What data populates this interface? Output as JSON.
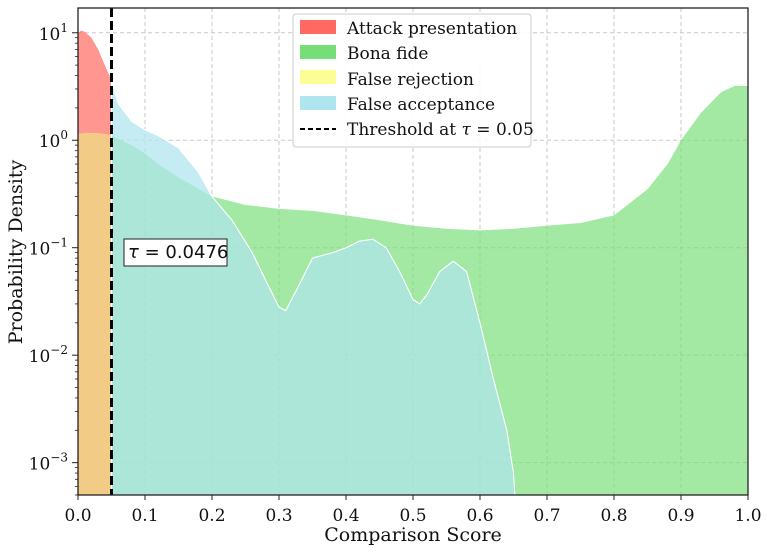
{
  "chart_data": {
    "type": "area",
    "title": "",
    "xlabel": "Comparison Score",
    "ylabel": "Probability Density",
    "yscale": "log",
    "xlim": [
      0.0,
      1.0
    ],
    "ylim": [
      0.0005,
      17
    ],
    "xticks": [
      "0.0",
      "0.1",
      "0.2",
      "0.3",
      "0.4",
      "0.5",
      "0.6",
      "0.7",
      "0.8",
      "0.9",
      "1.0"
    ],
    "yticks": [
      {
        "value": 0.001,
        "base": "10",
        "exp": "−3"
      },
      {
        "value": 0.01,
        "base": "10",
        "exp": "−2"
      },
      {
        "value": 0.1,
        "base": "10",
        "exp": "−1"
      },
      {
        "value": 1,
        "base": "10",
        "exp": "0"
      },
      {
        "value": 10,
        "base": "10",
        "exp": "1"
      }
    ],
    "grid": true,
    "legend_position": "top-center",
    "series": [
      {
        "name": "Attack presentation",
        "color": "#ff6961",
        "x": [
          0.0,
          0.005,
          0.01,
          0.02,
          0.03,
          0.04,
          0.05
        ],
        "y": [
          10.0,
          10.5,
          10.2,
          9.0,
          7.0,
          5.0,
          3.6
        ]
      },
      {
        "name": "Bona fide",
        "color": "#77dd77",
        "x": [
          0.0,
          0.01,
          0.05,
          0.08,
          0.1,
          0.12,
          0.15,
          0.2,
          0.25,
          0.3,
          0.35,
          0.4,
          0.45,
          0.5,
          0.55,
          0.6,
          0.65,
          0.7,
          0.75,
          0.8,
          0.85,
          0.88,
          0.9,
          0.93,
          0.96,
          0.98,
          1.0
        ],
        "y": [
          1.15,
          1.17,
          1.1,
          0.9,
          0.75,
          0.6,
          0.45,
          0.3,
          0.25,
          0.23,
          0.22,
          0.2,
          0.18,
          0.16,
          0.15,
          0.145,
          0.15,
          0.16,
          0.17,
          0.2,
          0.35,
          0.6,
          1.0,
          1.8,
          2.8,
          3.2,
          3.2
        ]
      },
      {
        "name": "False rejection",
        "color": "#fdfd96",
        "x": [
          0.0,
          0.01,
          0.02,
          0.03,
          0.04,
          0.05
        ],
        "y": [
          1.15,
          1.17,
          1.17,
          1.16,
          1.14,
          1.12
        ]
      },
      {
        "name": "False acceptance",
        "color": "#aee5ef",
        "x": [
          0.05,
          0.06,
          0.08,
          0.1,
          0.12,
          0.15,
          0.18,
          0.2,
          0.23,
          0.26,
          0.28,
          0.3,
          0.31,
          0.33,
          0.35,
          0.38,
          0.4,
          0.42,
          0.44,
          0.46,
          0.48,
          0.5,
          0.51,
          0.52,
          0.54,
          0.56,
          0.58,
          0.6,
          0.62,
          0.64,
          0.65,
          0.652
        ],
        "y": [
          3.6,
          2.2,
          1.5,
          1.25,
          1.1,
          0.85,
          0.5,
          0.3,
          0.18,
          0.09,
          0.05,
          0.028,
          0.026,
          0.045,
          0.08,
          0.09,
          0.1,
          0.115,
          0.12,
          0.1,
          0.06,
          0.033,
          0.03,
          0.036,
          0.06,
          0.075,
          0.06,
          0.02,
          0.006,
          0.002,
          0.0008,
          0.0005
        ]
      }
    ],
    "threshold": {
      "label_prefix": "Threshold at ",
      "symbol": "τ",
      "equals": " = ",
      "value": "0.05",
      "x": 0.05
    },
    "annotation": {
      "symbol": "τ",
      "equals": " = ",
      "value": "0.0476"
    }
  }
}
